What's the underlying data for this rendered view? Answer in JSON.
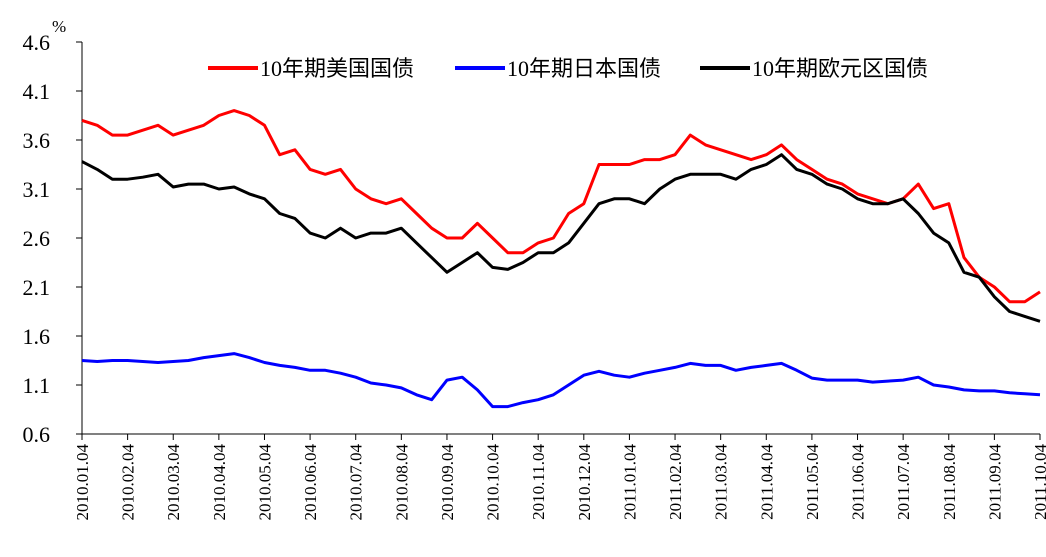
{
  "chart_data": {
    "type": "line",
    "y_unit": "%",
    "categories": [
      "2010.01.04",
      null,
      null,
      "2010.02.04",
      null,
      null,
      "2010.03.04",
      null,
      null,
      "2010.04.04",
      null,
      null,
      "2010.05.04",
      null,
      null,
      "2010.06.04",
      null,
      null,
      "2010.07.04",
      null,
      null,
      "2010.08.04",
      null,
      null,
      "2010.09.04",
      null,
      null,
      "2010.10.04",
      null,
      null,
      "2010.11.04",
      null,
      null,
      "2010.12.04",
      null,
      null,
      "2011.01.04",
      null,
      null,
      "2011.02.04",
      null,
      null,
      "2011.03.04",
      null,
      null,
      "2011.04.04",
      null,
      null,
      "2011.05.04",
      null,
      null,
      "2011.06.04",
      null,
      null,
      "2011.07.04",
      null,
      null,
      "2011.08.04",
      null,
      null,
      "2011.09.04",
      null,
      null,
      "2011.10.04"
    ],
    "series": [
      {
        "name": "10年期美国国债",
        "color": "#ff0000",
        "values": [
          3.8,
          3.75,
          3.65,
          3.65,
          3.7,
          3.75,
          3.65,
          3.7,
          3.75,
          3.85,
          3.9,
          3.85,
          3.75,
          3.45,
          3.5,
          3.3,
          3.25,
          3.3,
          3.1,
          3.0,
          2.95,
          3.0,
          2.85,
          2.7,
          2.6,
          2.6,
          2.75,
          2.6,
          2.45,
          2.45,
          2.55,
          2.6,
          2.85,
          2.95,
          3.35,
          3.35,
          3.35,
          3.4,
          3.4,
          3.45,
          3.65,
          3.55,
          3.5,
          3.45,
          3.4,
          3.45,
          3.55,
          3.4,
          3.3,
          3.2,
          3.15,
          3.05,
          3.0,
          2.95,
          3.0,
          3.15,
          2.9,
          2.95,
          2.4,
          2.2,
          2.1,
          1.95,
          1.95,
          2.05
        ]
      },
      {
        "name": "10年期日本国债",
        "color": "#0000ff",
        "values": [
          1.35,
          1.34,
          1.35,
          1.35,
          1.34,
          1.33,
          1.34,
          1.35,
          1.38,
          1.4,
          1.42,
          1.38,
          1.33,
          1.3,
          1.28,
          1.25,
          1.25,
          1.22,
          1.18,
          1.12,
          1.1,
          1.07,
          1.0,
          0.95,
          1.15,
          1.18,
          1.05,
          0.88,
          0.88,
          0.92,
          0.95,
          1.0,
          1.1,
          1.2,
          1.24,
          1.2,
          1.18,
          1.22,
          1.25,
          1.28,
          1.32,
          1.3,
          1.3,
          1.25,
          1.28,
          1.3,
          1.32,
          1.25,
          1.17,
          1.15,
          1.15,
          1.15,
          1.13,
          1.14,
          1.15,
          1.18,
          1.1,
          1.08,
          1.05,
          1.04,
          1.04,
          1.02,
          1.01,
          1.0
        ]
      },
      {
        "name": "10年期欧元区国债",
        "color": "#000000",
        "values": [
          3.38,
          3.3,
          3.2,
          3.2,
          3.22,
          3.25,
          3.12,
          3.15,
          3.15,
          3.1,
          3.12,
          3.05,
          3.0,
          2.85,
          2.8,
          2.65,
          2.6,
          2.7,
          2.6,
          2.65,
          2.65,
          2.7,
          2.55,
          2.4,
          2.25,
          2.35,
          2.45,
          2.3,
          2.28,
          2.35,
          2.45,
          2.45,
          2.55,
          2.75,
          2.95,
          3.0,
          3.0,
          2.95,
          3.1,
          3.2,
          3.25,
          3.25,
          3.25,
          3.2,
          3.3,
          3.35,
          3.45,
          3.3,
          3.25,
          3.15,
          3.1,
          3.0,
          2.95,
          2.95,
          3.0,
          2.85,
          2.65,
          2.55,
          2.25,
          2.2,
          2.0,
          1.85,
          1.8,
          1.75
        ]
      }
    ],
    "ylim": [
      0.6,
      4.6
    ],
    "yticks": [
      0.6,
      1.1,
      1.6,
      2.1,
      2.6,
      3.1,
      3.6,
      4.1,
      4.6
    ],
    "legend": "top"
  }
}
